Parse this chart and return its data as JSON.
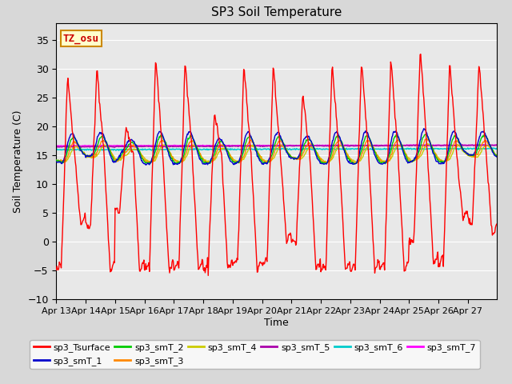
{
  "title": "SP3 Soil Temperature",
  "xlabel": "Time",
  "ylabel": "Soil Temperature (C)",
  "ylim": [
    -10,
    38
  ],
  "yticks": [
    -10,
    -5,
    0,
    5,
    10,
    15,
    20,
    25,
    30,
    35
  ],
  "annotation_text": "TZ_osu",
  "annotation_color": "#cc0000",
  "annotation_bg": "#ffffcc",
  "annotation_border": "#cc8800",
  "series_colors": {
    "sp3_Tsurface": "#ff0000",
    "sp3_smT_1": "#0000cc",
    "sp3_smT_2": "#00cc00",
    "sp3_smT_3": "#ff8800",
    "sp3_smT_4": "#cccc00",
    "sp3_smT_5": "#aa00aa",
    "sp3_smT_6": "#00cccc",
    "sp3_smT_7": "#ff00ff"
  },
  "plot_bg": "#e8e8e8",
  "fig_bg": "#d8d8d8"
}
